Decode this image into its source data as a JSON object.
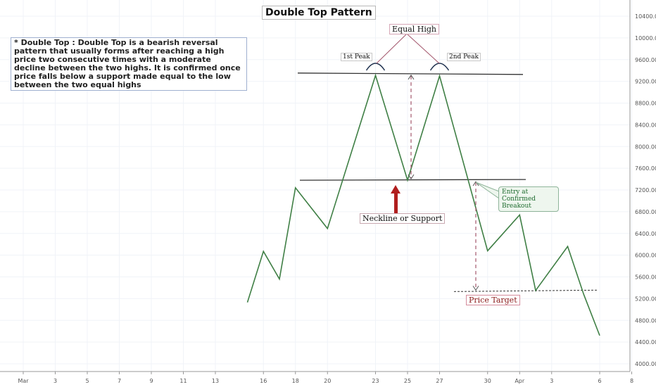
{
  "chart_data": {
    "type": "line",
    "title": "Double Top Pattern",
    "description": "* Double Top : Double Top is a bearish reversal pattern that usually forms after reaching a high price two consecutive times with a moderate decline between the two highs. It is confirmed once price falls below a support made equal to the low between the two equal highs",
    "x_ticks": [
      "Mar",
      "3",
      "5",
      "7",
      "9",
      "11",
      "13",
      "16",
      "18",
      "20",
      "23",
      "25",
      "27",
      "30",
      "Apr",
      "3",
      "6",
      "8"
    ],
    "y_ticks": [
      "4000.00",
      "4400.00",
      "4800.00",
      "5200.00",
      "5600.00",
      "6000.00",
      "6400.00",
      "6800.00",
      "7200.00",
      "7600.00",
      "8000.00",
      "8400.00",
      "8800.00",
      "9200.00",
      "9600.00",
      "10000.00",
      "10400.00"
    ],
    "ylim": [
      4000,
      10400
    ],
    "series": [
      {
        "x": [
          "Mar 15",
          "Mar 16",
          "Mar 17",
          "Mar 18",
          "Mar 20",
          "Mar 23",
          "Mar 25",
          "Mar 27",
          "Mar 30",
          "Apr 1",
          "Apr 2",
          "Apr 4",
          "Apr 5",
          "Apr 6"
        ],
        "values": [
          5130,
          6070,
          5560,
          7240,
          6490,
          9310,
          7380,
          9300,
          6080,
          6740,
          5350,
          6160,
          5280,
          4520
        ],
        "color": "#3f7f45"
      }
    ],
    "levels": {
      "resistance": 9340,
      "neckline": 7380,
      "price_target": 5330
    },
    "annotations": {
      "equal_high": "Equal High",
      "first_peak": "1st Peak",
      "second_peak": "2nd Peak",
      "neckline": "Neckline or Support",
      "entry": "Entry at Confirmed Breakout",
      "price_target": "Price Target"
    },
    "colors": {
      "line": "#3f7f45",
      "level": "#333333",
      "dashed": "#a3566c",
      "arrow": "#b01e1e",
      "grid": "#f0f3f8"
    },
    "grid": true
  }
}
